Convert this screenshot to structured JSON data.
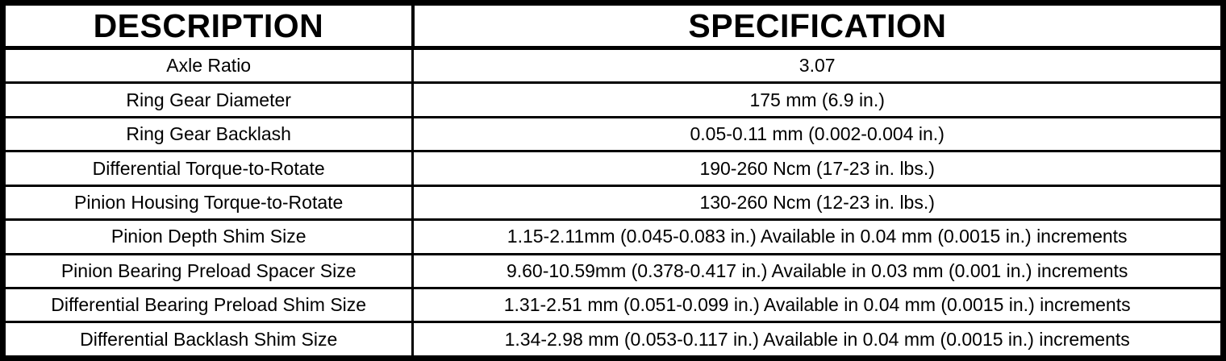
{
  "table": {
    "columns": [
      {
        "label": "DESCRIPTION"
      },
      {
        "label": "SPECIFICATION"
      }
    ],
    "rows": [
      {
        "description": "Axle Ratio",
        "specification": "3.07"
      },
      {
        "description": "Ring Gear Diameter",
        "specification": "175 mm (6.9 in.)"
      },
      {
        "description": "Ring Gear Backlash",
        "specification": "0.05-0.11 mm (0.002-0.004 in.)"
      },
      {
        "description": "Differential Torque-to-Rotate",
        "specification": "190-260 Ncm (17-23 in. lbs.)"
      },
      {
        "description": "Pinion Housing Torque-to-Rotate",
        "specification": "130-260 Ncm (12-23 in. lbs.)"
      },
      {
        "description": "Pinion Depth Shim Size",
        "specification": "1.15-2.11mm (0.045-0.083 in.) Available in 0.04 mm (0.0015 in.) increments"
      },
      {
        "description": "Pinion Bearing Preload Spacer Size",
        "specification": "9.60-10.59mm (0.378-0.417 in.) Available in 0.03 mm (0.001 in.) increments"
      },
      {
        "description": "Differential Bearing Preload Shim Size",
        "specification": "1.31-2.51 mm (0.051-0.099 in.) Available in 0.04 mm (0.0015 in.) increments"
      },
      {
        "description": "Differential Backlash Shim Size",
        "specification": "1.34-2.98 mm (0.053-0.117 in.) Available in 0.04 mm (0.0015 in.) increments"
      }
    ],
    "colors": {
      "border": "#000000",
      "text": "#000000",
      "background": "#ffffff"
    }
  }
}
